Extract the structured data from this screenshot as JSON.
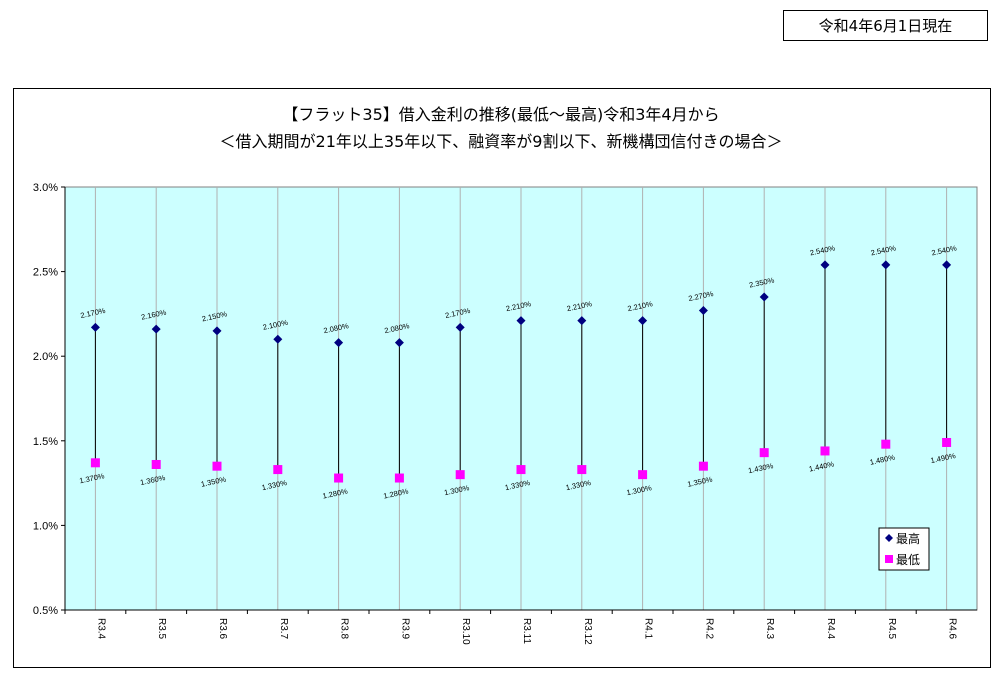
{
  "header": {
    "date_label": "令和4年6月1日現在"
  },
  "chart_data": {
    "type": "scatter",
    "title_line1": "【フラット35】借入金利の推移(最低～最高)令和3年4月から",
    "title_line2": "＜借入期間が21年以上35年以下、融資率が9割以下、新機構団信付きの場合＞",
    "categories": [
      "R3.4",
      "R3.5",
      "R3.6",
      "R3.7",
      "R3.8",
      "R3.9",
      "R3.10",
      "R3.11",
      "R3.12",
      "R4.1",
      "R4.2",
      "R4.3",
      "R4.4",
      "R4.5",
      "R4.6"
    ],
    "series": [
      {
        "name": "最高",
        "color": "#000080",
        "marker": "diamond",
        "values": [
          2.17,
          2.16,
          2.15,
          2.1,
          2.08,
          2.08,
          2.17,
          2.21,
          2.21,
          2.21,
          2.27,
          2.35,
          2.54,
          2.54,
          2.54
        ],
        "labels": [
          "2.170%",
          "2.160%",
          "2.150%",
          "2.100%",
          "2.080%",
          "2.080%",
          "2.170%",
          "2.210%",
          "2.210%",
          "2.210%",
          "2.270%",
          "2.350%",
          "2.540%",
          "2.540%",
          "2.540%"
        ]
      },
      {
        "name": "最低",
        "color": "#ff00ff",
        "marker": "square",
        "values": [
          1.37,
          1.36,
          1.35,
          1.33,
          1.28,
          1.28,
          1.3,
          1.33,
          1.33,
          1.3,
          1.35,
          1.43,
          1.44,
          1.48,
          1.49
        ],
        "labels": [
          "1.370%",
          "1.360%",
          "1.350%",
          "1.330%",
          "1.280%",
          "1.280%",
          "1.300%",
          "1.330%",
          "1.330%",
          "1.300%",
          "1.350%",
          "1.430%",
          "1.440%",
          "1.480%",
          "1.490%"
        ]
      }
    ],
    "ylim": [
      0.5,
      3.0
    ],
    "yticks": [
      "0.5%",
      "1.0%",
      "1.5%",
      "2.0%",
      "2.5%",
      "3.0%"
    ],
    "ytick_values": [
      0.5,
      1.0,
      1.5,
      2.0,
      2.5,
      3.0
    ],
    "plot_background": "#ccffff",
    "grid": true,
    "legend_position": "bottom-right"
  }
}
